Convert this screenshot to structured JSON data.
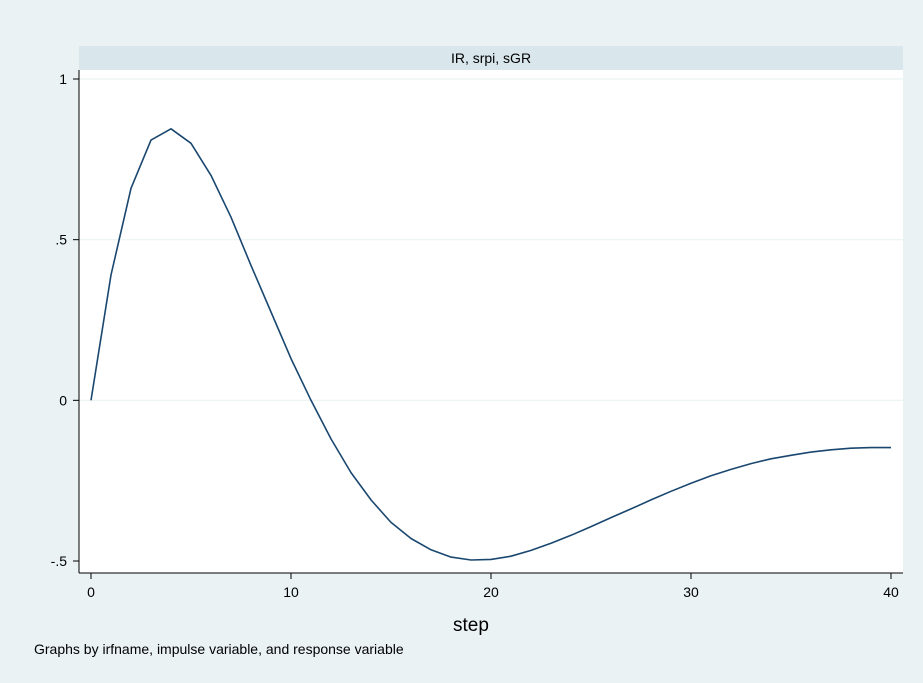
{
  "chart_data": {
    "type": "line",
    "panel_title": "IR, srpi, sGR",
    "xlabel": "step",
    "ylabel": "",
    "note": "Graphs by irfname, impulse variable, and response variable",
    "xlim": [
      0,
      40
    ],
    "ylim": [
      -0.5,
      1.0
    ],
    "xticks": [
      {
        "value": 0,
        "label": "0"
      },
      {
        "value": 10,
        "label": "10"
      },
      {
        "value": 20,
        "label": "20"
      },
      {
        "value": 30,
        "label": "30"
      },
      {
        "value": 40,
        "label": "40"
      }
    ],
    "yticks": [
      {
        "value": -0.5,
        "label": "-.5"
      },
      {
        "value": 0,
        "label": "0"
      },
      {
        "value": 0.5,
        "label": ".5"
      },
      {
        "value": 1,
        "label": "1"
      }
    ],
    "grid": true,
    "series": [
      {
        "color": "#1a476f",
        "x": [
          0,
          1,
          2,
          3,
          4,
          5,
          6,
          7,
          8,
          9,
          10,
          11,
          12,
          13,
          14,
          15,
          16,
          17,
          18,
          19,
          20,
          21,
          22,
          23,
          24,
          25,
          26,
          27,
          28,
          29,
          30,
          31,
          32,
          33,
          34,
          35,
          36,
          37,
          38,
          39,
          40
        ],
        "y": [
          0,
          0.39,
          0.66,
          0.81,
          0.845,
          0.8,
          0.7,
          0.57,
          0.42,
          0.275,
          0.13,
          0,
          -0.12,
          -0.225,
          -0.31,
          -0.38,
          -0.43,
          -0.465,
          -0.488,
          -0.497,
          -0.495,
          -0.485,
          -0.467,
          -0.445,
          -0.42,
          -0.393,
          -0.365,
          -0.338,
          -0.31,
          -0.283,
          -0.258,
          -0.235,
          -0.215,
          -0.197,
          -0.182,
          -0.171,
          -0.161,
          -0.154,
          -0.149,
          -0.147,
          -0.147
        ]
      }
    ]
  }
}
